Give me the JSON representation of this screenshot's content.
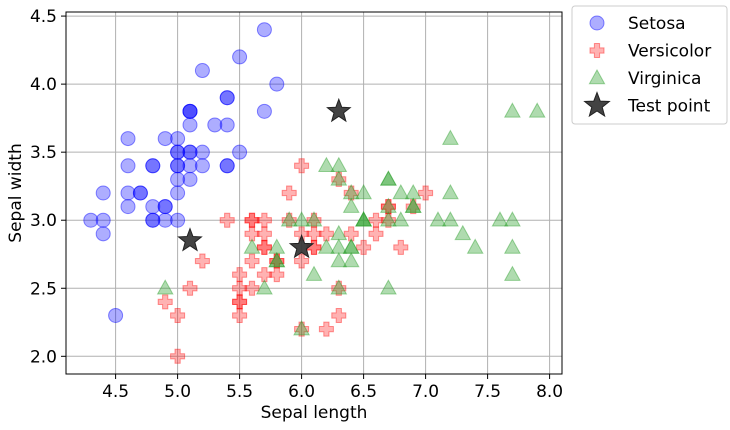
{
  "chart_data": {
    "type": "scatter",
    "xlabel": "Sepal length",
    "ylabel": "Sepal width",
    "xlim": [
      4.1,
      8.1
    ],
    "ylim": [
      1.87,
      4.53
    ],
    "xticks": [
      4.5,
      5.0,
      5.5,
      6.0,
      6.5,
      7.0,
      7.5,
      8.0
    ],
    "yticks": [
      2.0,
      2.5,
      3.0,
      3.5,
      4.0,
      4.5
    ],
    "xtick_labels": [
      "4.5",
      "5.0",
      "5.5",
      "6.0",
      "6.5",
      "7.0",
      "7.5",
      "8.0"
    ],
    "ytick_labels": [
      "2.0",
      "2.5",
      "3.0",
      "3.5",
      "4.0",
      "4.5"
    ],
    "grid": true,
    "legend_position": "outside-right-top",
    "series": [
      {
        "name": "Setosa",
        "marker": "circle",
        "color": "#0000ff",
        "points": [
          [
            5.1,
            3.5
          ],
          [
            4.9,
            3.0
          ],
          [
            4.7,
            3.2
          ],
          [
            4.6,
            3.1
          ],
          [
            5.0,
            3.6
          ],
          [
            5.4,
            3.9
          ],
          [
            4.6,
            3.4
          ],
          [
            5.0,
            3.4
          ],
          [
            4.4,
            2.9
          ],
          [
            4.9,
            3.1
          ],
          [
            5.4,
            3.7
          ],
          [
            4.8,
            3.4
          ],
          [
            4.8,
            3.0
          ],
          [
            4.3,
            3.0
          ],
          [
            5.8,
            4.0
          ],
          [
            5.7,
            4.4
          ],
          [
            5.4,
            3.9
          ],
          [
            5.1,
            3.5
          ],
          [
            5.7,
            3.8
          ],
          [
            5.1,
            3.8
          ],
          [
            5.4,
            3.4
          ],
          [
            5.1,
            3.7
          ],
          [
            4.6,
            3.6
          ],
          [
            5.1,
            3.3
          ],
          [
            4.8,
            3.4
          ],
          [
            5.0,
            3.0
          ],
          [
            5.0,
            3.4
          ],
          [
            5.2,
            3.5
          ],
          [
            5.2,
            3.4
          ],
          [
            4.7,
            3.2
          ],
          [
            4.8,
            3.1
          ],
          [
            5.4,
            3.4
          ],
          [
            5.2,
            4.1
          ],
          [
            5.5,
            4.2
          ],
          [
            4.9,
            3.1
          ],
          [
            5.0,
            3.2
          ],
          [
            5.5,
            3.5
          ],
          [
            4.9,
            3.6
          ],
          [
            4.4,
            3.0
          ],
          [
            5.1,
            3.4
          ],
          [
            5.0,
            3.5
          ],
          [
            4.5,
            2.3
          ],
          [
            4.4,
            3.2
          ],
          [
            5.0,
            3.5
          ],
          [
            5.1,
            3.8
          ],
          [
            4.8,
            3.0
          ],
          [
            5.1,
            3.8
          ],
          [
            4.6,
            3.2
          ],
          [
            5.3,
            3.7
          ],
          [
            5.0,
            3.3
          ]
        ]
      },
      {
        "name": "Versicolor",
        "marker": "plus",
        "color": "#ff0000",
        "points": [
          [
            7.0,
            3.2
          ],
          [
            6.4,
            3.2
          ],
          [
            6.9,
            3.1
          ],
          [
            5.5,
            2.3
          ],
          [
            6.5,
            2.8
          ],
          [
            5.7,
            2.8
          ],
          [
            6.3,
            3.3
          ],
          [
            4.9,
            2.4
          ],
          [
            6.6,
            2.9
          ],
          [
            5.2,
            2.7
          ],
          [
            5.0,
            2.0
          ],
          [
            5.9,
            3.0
          ],
          [
            6.0,
            2.2
          ],
          [
            6.1,
            2.9
          ],
          [
            5.6,
            2.9
          ],
          [
            6.7,
            3.1
          ],
          [
            5.6,
            3.0
          ],
          [
            5.8,
            2.7
          ],
          [
            6.2,
            2.2
          ],
          [
            5.6,
            2.5
          ],
          [
            5.9,
            3.2
          ],
          [
            6.1,
            2.8
          ],
          [
            6.3,
            2.5
          ],
          [
            6.1,
            2.8
          ],
          [
            6.4,
            2.9
          ],
          [
            6.6,
            3.0
          ],
          [
            6.8,
            2.8
          ],
          [
            6.7,
            3.0
          ],
          [
            6.0,
            2.9
          ],
          [
            5.7,
            2.6
          ],
          [
            5.5,
            2.4
          ],
          [
            5.5,
            2.4
          ],
          [
            5.8,
            2.7
          ],
          [
            6.0,
            2.7
          ],
          [
            5.4,
            3.0
          ],
          [
            6.0,
            3.4
          ],
          [
            6.7,
            3.1
          ],
          [
            6.3,
            2.3
          ],
          [
            5.6,
            3.0
          ],
          [
            5.5,
            2.5
          ],
          [
            5.5,
            2.6
          ],
          [
            6.1,
            3.0
          ],
          [
            5.8,
            2.6
          ],
          [
            5.0,
            2.3
          ],
          [
            5.6,
            2.7
          ],
          [
            5.7,
            3.0
          ],
          [
            5.7,
            2.9
          ],
          [
            6.2,
            2.9
          ],
          [
            5.1,
            2.5
          ],
          [
            5.7,
            2.8
          ]
        ]
      },
      {
        "name": "Virginica",
        "marker": "triangle",
        "color": "#2ca02c",
        "points": [
          [
            6.3,
            3.3
          ],
          [
            5.8,
            2.7
          ],
          [
            7.1,
            3.0
          ],
          [
            6.3,
            2.9
          ],
          [
            6.5,
            3.0
          ],
          [
            7.6,
            3.0
          ],
          [
            4.9,
            2.5
          ],
          [
            7.3,
            2.9
          ],
          [
            6.7,
            2.5
          ],
          [
            7.2,
            3.6
          ],
          [
            6.5,
            3.2
          ],
          [
            6.4,
            2.7
          ],
          [
            6.8,
            3.0
          ],
          [
            5.7,
            2.5
          ],
          [
            5.8,
            2.8
          ],
          [
            6.4,
            3.2
          ],
          [
            6.5,
            3.0
          ],
          [
            7.7,
            3.8
          ],
          [
            7.7,
            2.6
          ],
          [
            6.0,
            2.2
          ],
          [
            6.9,
            3.2
          ],
          [
            5.6,
            2.8
          ],
          [
            7.7,
            2.8
          ],
          [
            6.3,
            2.7
          ],
          [
            6.7,
            3.3
          ],
          [
            7.2,
            3.2
          ],
          [
            6.2,
            2.8
          ],
          [
            6.1,
            3.0
          ],
          [
            6.4,
            2.8
          ],
          [
            7.2,
            3.0
          ],
          [
            7.4,
            2.8
          ],
          [
            7.9,
            3.8
          ],
          [
            6.4,
            2.8
          ],
          [
            6.3,
            2.8
          ],
          [
            6.1,
            2.6
          ],
          [
            7.7,
            3.0
          ],
          [
            6.3,
            3.4
          ],
          [
            6.4,
            3.1
          ],
          [
            6.0,
            3.0
          ],
          [
            6.9,
            3.1
          ],
          [
            6.7,
            3.1
          ],
          [
            6.9,
            3.1
          ],
          [
            5.8,
            2.7
          ],
          [
            6.8,
            3.2
          ],
          [
            6.7,
            3.3
          ],
          [
            6.7,
            3.0
          ],
          [
            6.3,
            2.5
          ],
          [
            6.5,
            3.0
          ],
          [
            6.2,
            3.4
          ],
          [
            5.9,
            3.0
          ]
        ]
      },
      {
        "name": "Test point",
        "marker": "star",
        "color": "#333333",
        "points": [
          [
            6.3,
            3.8
          ],
          [
            5.1,
            2.85
          ],
          [
            6.0,
            2.8
          ]
        ]
      }
    ]
  }
}
